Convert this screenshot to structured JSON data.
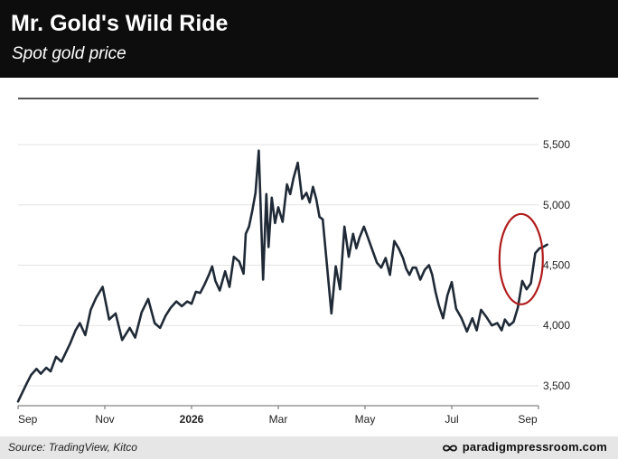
{
  "header": {
    "title": "Mr. Gold's Wild Ride",
    "subtitle": "Spot gold price"
  },
  "footer": {
    "source": "Source: TradingView, Kitco",
    "brand": "paradigmpressroom.com",
    "brand_icon": "infinity-icon"
  },
  "chart_data": {
    "type": "line",
    "title": "Mr. Gold's Wild Ride",
    "subtitle": "Spot gold price",
    "xlabel": "",
    "ylabel": "",
    "ylim": [
      3350,
      5800
    ],
    "yticks": [
      3500,
      4000,
      4500,
      5000,
      5500
    ],
    "ytick_labels": [
      "3,500",
      "4,000",
      "4,500",
      "5,000",
      "5,500"
    ],
    "xtick_labels": [
      "Sep",
      "Nov",
      "2026",
      "Mar",
      "May",
      "Jul",
      "Sep"
    ],
    "x_range": [
      0,
      24
    ],
    "xtick_positions": [
      0,
      4,
      8,
      12,
      16,
      20,
      24
    ],
    "grid": true,
    "y_axis_side": "right",
    "line_color": "#1f2a36",
    "annotation": {
      "type": "ellipse",
      "color": "#b01c1c",
      "x": 23.2,
      "y": 4550
    },
    "series": [
      {
        "x": [
          0,
          0.4,
          0.6,
          0.85,
          1.05,
          1.3,
          1.5,
          1.75,
          2.0,
          2.4,
          2.65,
          2.85,
          3.1,
          3.35,
          3.6,
          3.9,
          4.2,
          4.5,
          4.8,
          5.15,
          5.4,
          5.7,
          6.0,
          6.3,
          6.55,
          6.8,
          7.05,
          7.3,
          7.55,
          7.8,
          8.0,
          8.2,
          8.4,
          8.6,
          8.8,
          8.95,
          9.1,
          9.3,
          9.55,
          9.75,
          9.95,
          10.2,
          10.4,
          10.5,
          10.65,
          10.8,
          10.95,
          11.1,
          11.3,
          11.45,
          11.55,
          11.7,
          11.85,
          12.0,
          12.2,
          12.4,
          12.55,
          12.7,
          12.9,
          13.1,
          13.3,
          13.45,
          13.6,
          13.75,
          13.9,
          14.05,
          14.25,
          14.45,
          14.65,
          14.85,
          15.05,
          15.25,
          15.45,
          15.6,
          15.75,
          15.95,
          16.15,
          16.35,
          16.55,
          16.75,
          16.95,
          17.15,
          17.35,
          17.55,
          17.75,
          17.9,
          18.05,
          18.2,
          18.35,
          18.55,
          18.75,
          18.95,
          19.1,
          19.25,
          19.4,
          19.6,
          19.8,
          20.0,
          20.2,
          20.45,
          20.7,
          20.95,
          21.15,
          21.35,
          21.6,
          21.85,
          22.1,
          22.3,
          22.45,
          22.65,
          22.85,
          23.05,
          23.25,
          23.45,
          23.65,
          23.85,
          24.05,
          24.2,
          24.4
        ],
        "y": [
          3370,
          3520,
          3590,
          3640,
          3600,
          3650,
          3620,
          3740,
          3700,
          3850,
          3960,
          4020,
          3920,
          4130,
          4230,
          4320,
          4050,
          4100,
          3880,
          3980,
          3900,
          4110,
          4220,
          4020,
          3980,
          4080,
          4150,
          4200,
          4160,
          4200,
          4180,
          4280,
          4270,
          4340,
          4420,
          4490,
          4370,
          4290,
          4450,
          4320,
          4570,
          4530,
          4430,
          4760,
          4820,
          4950,
          5100,
          5450,
          4380,
          5090,
          4650,
          5060,
          4850,
          4980,
          4860,
          5170,
          5090,
          5220,
          5350,
          5050,
          5100,
          5020,
          5150,
          5050,
          4900,
          4880,
          4490,
          4100,
          4490,
          4300,
          4820,
          4570,
          4760,
          4640,
          4730,
          4820,
          4720,
          4620,
          4520,
          4480,
          4560,
          4420,
          4700,
          4640,
          4560,
          4470,
          4420,
          4480,
          4480,
          4380,
          4460,
          4500,
          4420,
          4280,
          4170,
          4060,
          4250,
          4360,
          4140,
          4060,
          3950,
          4060,
          3960,
          4130,
          4070,
          4000,
          4020,
          3960,
          4050,
          4000,
          4030,
          4150,
          4370,
          4300,
          4350,
          4600,
          4640,
          4650,
          4670
        ]
      }
    ]
  }
}
